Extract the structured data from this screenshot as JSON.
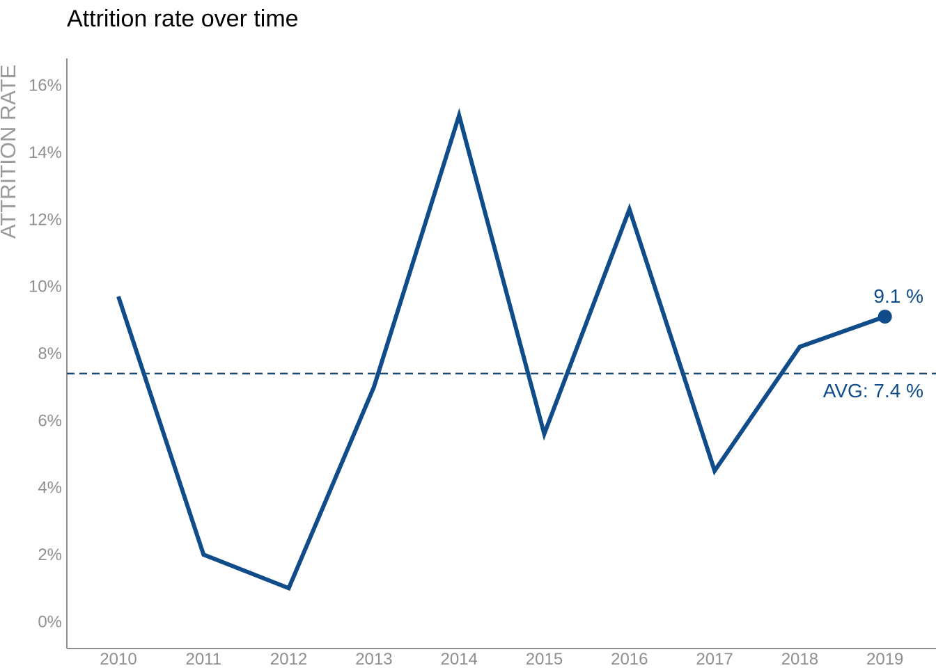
{
  "chart_data": {
    "type": "line",
    "title": "Attrition rate over time",
    "ylabel": "ATTRITION RATE",
    "xlabel": "",
    "x": [
      "2010",
      "2011",
      "2012",
      "2013",
      "2014",
      "2015",
      "2016",
      "2017",
      "2018",
      "2019"
    ],
    "series": [
      {
        "values": [
          9.7,
          2.0,
          1.0,
          7.0,
          15.1,
          5.6,
          12.3,
          4.5,
          8.2,
          9.1
        ]
      }
    ],
    "ylim": [
      -0.8,
      16.8
    ],
    "y_ticks": [
      0,
      2,
      4,
      6,
      8,
      10,
      12,
      14,
      16
    ],
    "y_tick_labels": [
      "0%",
      "2%",
      "4%",
      "6%",
      "8%",
      "10%",
      "12%",
      "14%",
      "16%"
    ],
    "average": 7.4,
    "average_label": "AVG:  7.4 %",
    "end_label": "9.1 %",
    "grid": false,
    "colors": {
      "line": "#114c8a",
      "average_line": "#1b4a72",
      "axis": "#8f8f8f",
      "tick_text": "#8f8f8f",
      "axis_title": "#9a9a9a"
    }
  }
}
